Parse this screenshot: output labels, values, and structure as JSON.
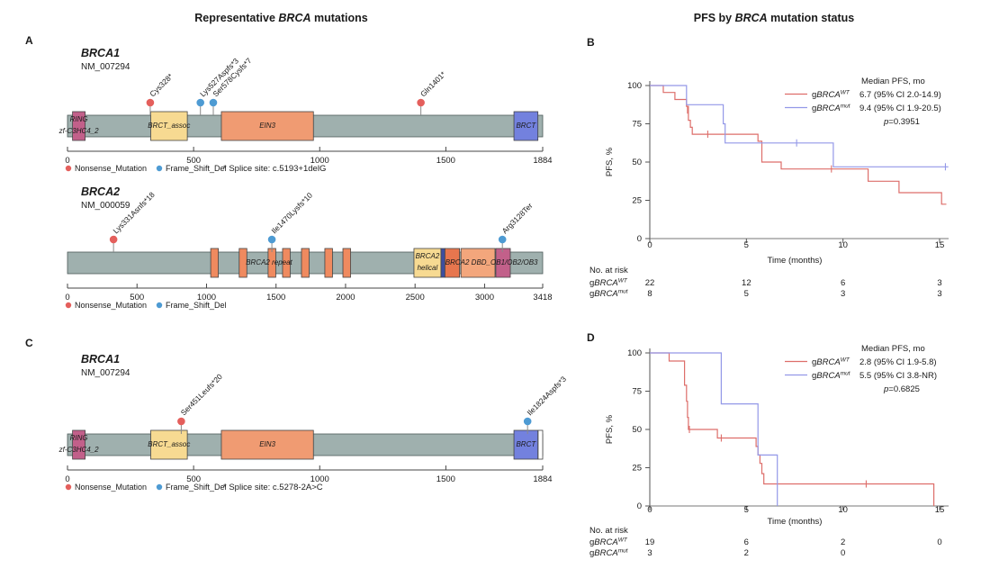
{
  "titles": {
    "left": {
      "pre": "Representative ",
      "em": "BRCA",
      "post": " mutations"
    },
    "right": {
      "pre": "PFS by ",
      "em": "BRCA",
      "post": " mutation status"
    }
  },
  "labels": {
    "a": "A",
    "b": "B",
    "c": "C",
    "d": "D"
  },
  "chart_data": {
    "mutation_colors": {
      "Nonsense_Mutation": "#e45f5c",
      "Frame_Shift_Del": "#4e9bd3"
    },
    "bar_color": "#9fb0ae",
    "lollipops": [
      {
        "panel": "A",
        "gene": "BRCA1",
        "transcript": "NM_007294",
        "length": 1884,
        "domains": [
          {
            "lines": [
              "RING",
              "zf-C3HC4_2"
            ],
            "start": 20,
            "end": 70,
            "color": "#c2608a"
          },
          {
            "lines": [
              "BRCT_assoc"
            ],
            "start": 330,
            "end": 475,
            "color": "#f7da92"
          },
          {
            "lines": [
              "EIN3"
            ],
            "start": 610,
            "end": 975,
            "color": "#f09b72"
          },
          {
            "lines": [
              "BRCT"
            ],
            "start": 1770,
            "end": 1865,
            "color": "#7381de"
          }
        ],
        "bar_labels": [],
        "mutations": [
          {
            "label": "Cys328*",
            "pos": 328,
            "type": "Nonsense_Mutation"
          },
          {
            "label": "Lys527Aspfs*3",
            "pos": 527,
            "type": "Frame_Shift_Del"
          },
          {
            "label": "Ser578Cysfs*7",
            "pos": 578,
            "type": "Frame_Shift_Del"
          },
          {
            "label": "Gln1401*",
            "pos": 1401,
            "type": "Nonsense_Mutation"
          }
        ],
        "axis_ticks": [
          0,
          500,
          1000,
          1500,
          1884
        ],
        "legend": [
          "Nonsense_Mutation",
          "Frame_Shift_Del"
        ],
        "note": "* Splice site: c.5193+1delG"
      },
      {
        "panel": "A",
        "gene": "BRCA2",
        "transcript": "NM_000059",
        "length": 3418,
        "domains": [
          {
            "lines": [],
            "start": 1030,
            "end": 1085,
            "color": "#ef8a5f"
          },
          {
            "lines": [],
            "start": 1235,
            "end": 1290,
            "color": "#ef8a5f"
          },
          {
            "lines": [],
            "start": 1443,
            "end": 1498,
            "color": "#ef8a5f"
          },
          {
            "lines": [],
            "start": 1547,
            "end": 1602,
            "color": "#ef8a5f"
          },
          {
            "lines": [],
            "start": 1683,
            "end": 1738,
            "color": "#ef8a5f"
          },
          {
            "lines": [],
            "start": 1851,
            "end": 1906,
            "color": "#ef8a5f"
          },
          {
            "lines": [],
            "start": 1981,
            "end": 2036,
            "color": "#ef8a5f"
          },
          {
            "lines": [
              "BRCA2",
              "helical"
            ],
            "start": 2492,
            "end": 2686,
            "color": "#f7da92"
          },
          {
            "lines": [],
            "start": 2686,
            "end": 2715,
            "color": "#3d4e9e"
          },
          {
            "lines": [],
            "start": 2715,
            "end": 2820,
            "color": "#e7764e"
          },
          {
            "lines": [],
            "start": 2830,
            "end": 3075,
            "color": "#f3a67c"
          },
          {
            "lines": [],
            "start": 3081,
            "end": 3185,
            "color": "#c2608a"
          }
        ],
        "bar_labels": [
          {
            "text": "BRCA2 repeat",
            "pos": 1450
          },
          {
            "text": "BRCA2 DBD_OB1/OB2/OB3",
            "pos": 3050
          }
        ],
        "mutations": [
          {
            "label": "Lys331Asnfs*18",
            "pos": 331,
            "type": "Nonsense_Mutation"
          },
          {
            "label": "Ile1470Lysfs*10",
            "pos": 1470,
            "type": "Frame_Shift_Del"
          },
          {
            "label": "Arg3128Ter",
            "pos": 3128,
            "type": "Frame_Shift_Del"
          }
        ],
        "axis_ticks": [
          0,
          500,
          1000,
          1500,
          2000,
          2500,
          3000,
          3418
        ],
        "legend": [
          "Nonsense_Mutation",
          "Frame_Shift_Del"
        ],
        "note": null
      },
      {
        "panel": "C",
        "gene": "BRCA1",
        "transcript": "NM_007294",
        "length": 1884,
        "domains": [
          {
            "lines": [
              "RING",
              "zf-C3HC4_2"
            ],
            "start": 20,
            "end": 70,
            "color": "#c2608a"
          },
          {
            "lines": [
              "BRCT_assoc"
            ],
            "start": 330,
            "end": 475,
            "color": "#f7da92"
          },
          {
            "lines": [
              "EIN3"
            ],
            "start": 610,
            "end": 975,
            "color": "#f09b72"
          },
          {
            "lines": [
              "BRCT"
            ],
            "start": 1770,
            "end": 1865,
            "color": "#7381de"
          },
          {
            "lines": [],
            "start": 1866,
            "end": 1884,
            "color": "#ffffff"
          }
        ],
        "bar_labels": [],
        "mutations": [
          {
            "label": "Ser451Leufs*20",
            "pos": 451,
            "type": "Nonsense_Mutation"
          },
          {
            "label": "Ile1824Aspfs*3",
            "pos": 1824,
            "type": "Frame_Shift_Del"
          }
        ],
        "axis_ticks": [
          0,
          500,
          1000,
          1500,
          1884
        ],
        "legend": [
          "Nonsense_Mutation",
          "Frame_Shift_Del"
        ],
        "note": "* Splice site: c.5278-2A>C"
      }
    ],
    "km": [
      {
        "panel": "B",
        "type": "line",
        "ylabel": "PFS, %",
        "xlabel": "Time (months)",
        "xticks": [
          0,
          5,
          10,
          15
        ],
        "yticks": [
          0,
          25,
          50,
          75,
          100
        ],
        "legend_header": "Median PFS, mo",
        "pvalue": "p=0.3951",
        "layout": {
          "tick_y": 215,
          "xlabel_y": 232,
          "atrisk_y": [
            243,
            257,
            269
          ]
        },
        "series": [
          {
            "prefix": "g",
            "gene": "BRCA",
            "sup": "WT",
            "color": "#dd6e6a",
            "median": "6.7 (95% CI 2.0-14.9)",
            "points": [
              [
                0,
                100
              ],
              [
                0.7,
                95.5
              ],
              [
                1.3,
                90.9
              ],
              [
                1.9,
                86.4
              ],
              [
                2.0,
                77.3
              ],
              [
                2.1,
                72.7
              ],
              [
                2.2,
                68.2
              ],
              [
                5.6,
                63.6
              ],
              [
                5.8,
                50
              ],
              [
                6.8,
                45.5
              ],
              [
                11.3,
                37.5
              ],
              [
                12.9,
                30
              ],
              [
                15.1,
                22.5
              ],
              [
                15.35,
                22.5
              ]
            ],
            "censors": [
              [
                1.95,
                84
              ],
              [
                3.0,
                68.2
              ],
              [
                9.4,
                45.5
              ]
            ]
          },
          {
            "prefix": "g",
            "gene": "BRCA",
            "sup": "mut",
            "color": "#9398e8",
            "median": "9.4 (95% CI 1.9-20.5)",
            "points": [
              [
                0,
                100
              ],
              [
                1.9,
                87.5
              ],
              [
                3.8,
                75
              ],
              [
                3.9,
                62.5
              ],
              [
                9.5,
                46.9
              ],
              [
                15.45,
                46.9
              ]
            ],
            "censors": [
              [
                7.6,
                62.5
              ],
              [
                15.3,
                46.9
              ]
            ]
          }
        ],
        "at_risk": {
          "header": "No. at risk",
          "times": [
            0,
            5,
            10,
            15
          ],
          "rows": [
            {
              "prefix": "g",
              "gene": "BRCA",
              "sup": "WT",
              "values": [
                "22",
                "12",
                "6",
                "3"
              ]
            },
            {
              "prefix": "g",
              "gene": "BRCA",
              "sup": "mut",
              "values": [
                "8",
                "5",
                "3",
                "3"
              ]
            }
          ]
        }
      },
      {
        "panel": "D",
        "type": "line",
        "ylabel": "PFS, %",
        "xlabel": "Time (months)",
        "xticks": [
          0,
          5,
          10,
          15
        ],
        "yticks": [
          0,
          25,
          50,
          75,
          100
        ],
        "legend_header": "Median PFS, mo",
        "pvalue": "p=0.6825",
        "layout": {
          "tick_y": 212,
          "xlabel_y": 225,
          "atrisk_y": [
            235,
            248,
            260
          ]
        },
        "series": [
          {
            "prefix": "g",
            "gene": "BRCA",
            "sup": "WT",
            "color": "#dd6e6a",
            "median": "2.8 (95% CI 1.9-5.8)",
            "points": [
              [
                0,
                100
              ],
              [
                1.0,
                94.7
              ],
              [
                1.8,
                78.9
              ],
              [
                1.9,
                68.4
              ],
              [
                1.95,
                57.9
              ],
              [
                2.0,
                50
              ],
              [
                3.5,
                44.4
              ],
              [
                5.5,
                38.9
              ],
              [
                5.6,
                33.3
              ],
              [
                5.7,
                27.8
              ],
              [
                5.8,
                21.1
              ],
              [
                5.9,
                14.4
              ],
              [
                14.7,
                0
              ]
            ],
            "censors": [
              [
                2.05,
                50
              ],
              [
                3.7,
                44.4
              ],
              [
                11.2,
                14.4
              ]
            ]
          },
          {
            "prefix": "g",
            "gene": "BRCA",
            "sup": "mut",
            "color": "#9398e8",
            "median": "5.5 (95% CI 3.8-NR)",
            "points": [
              [
                0,
                100
              ],
              [
                3.7,
                66.7
              ],
              [
                5.6,
                33.3
              ],
              [
                6.6,
                0
              ]
            ],
            "censors": []
          }
        ],
        "at_risk": {
          "header": "No. at risk",
          "times": [
            0,
            5,
            10,
            15
          ],
          "rows": [
            {
              "prefix": "g",
              "gene": "BRCA",
              "sup": "WT",
              "values": [
                "19",
                "6",
                "2",
                "0"
              ]
            },
            {
              "prefix": "g",
              "gene": "BRCA",
              "sup": "mut",
              "values": [
                "3",
                "2",
                "0",
                ""
              ]
            }
          ]
        }
      }
    ]
  }
}
